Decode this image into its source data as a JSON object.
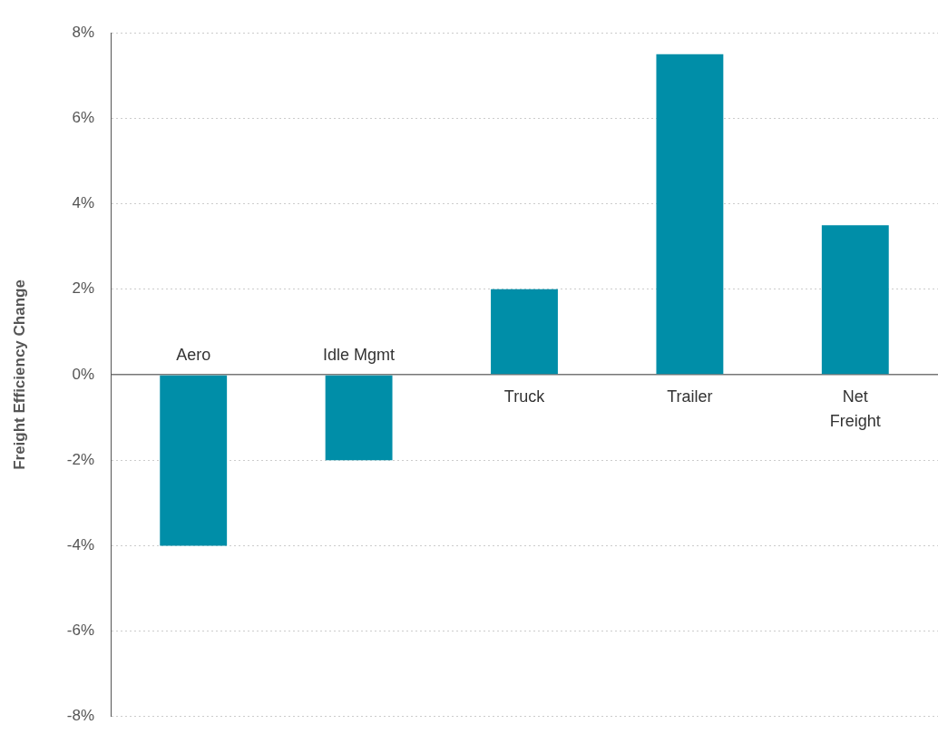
{
  "chart_data": {
    "type": "bar",
    "ylabel": "Freight Efficiency Change",
    "categories": [
      "Aero",
      "Idle Mgmt",
      "Truck",
      "Trailer",
      "Net Freight"
    ],
    "values": [
      -4,
      -2,
      2,
      7.5,
      3.5
    ],
    "color": "#008ea8",
    "ylim": [
      -8,
      8
    ],
    "yticks": [
      {
        "value": -8,
        "label": "-8%"
      },
      {
        "value": -6,
        "label": "-6%"
      },
      {
        "value": -4,
        "label": "-4%"
      },
      {
        "value": -2,
        "label": "-2%"
      },
      {
        "value": 0,
        "label": "0%"
      },
      {
        "value": 2,
        "label": "2%"
      },
      {
        "value": 4,
        "label": "4%"
      },
      {
        "value": 6,
        "label": "6%"
      },
      {
        "value": 8,
        "label": "8%"
      }
    ],
    "grid": "y",
    "legend": false
  }
}
